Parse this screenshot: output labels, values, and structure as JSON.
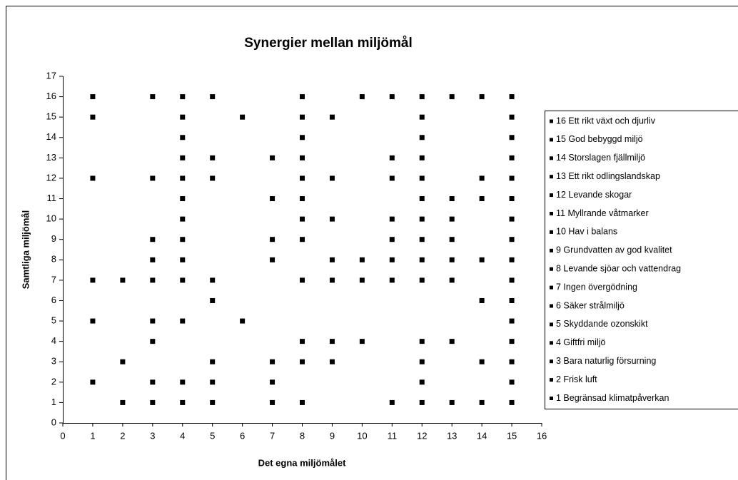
{
  "chart_data": {
    "type": "scatter",
    "title": "Synergier mellan miljömål",
    "xlabel": "Det egna miljömålet",
    "ylabel": "Samtliga miljömål",
    "xlim": [
      0,
      16
    ],
    "xticks": [
      0,
      1,
      2,
      3,
      4,
      5,
      6,
      7,
      8,
      9,
      10,
      11,
      12,
      13,
      14,
      15,
      16
    ],
    "ylim": [
      0,
      17
    ],
    "yticks": [
      0,
      1,
      2,
      3,
      4,
      5,
      6,
      7,
      8,
      9,
      10,
      11,
      12,
      13,
      14,
      15,
      16,
      17
    ],
    "grid": false,
    "legend": "right",
    "series": [
      {
        "name": "16 Ett rikt växt och djurliv",
        "color": "#000000",
        "x": [
          1,
          3,
          4,
          5,
          8,
          10,
          11,
          12,
          13,
          14,
          15
        ],
        "values": [
          16,
          16,
          16,
          16,
          16,
          16,
          16,
          16,
          16,
          16,
          16
        ]
      },
      {
        "name": "15 God bebyggd miljö",
        "color": "#000000",
        "x": [
          1,
          4,
          6,
          8,
          9,
          12,
          15
        ],
        "values": [
          15,
          15,
          15,
          15,
          15,
          15,
          15
        ]
      },
      {
        "name": "14 Storslagen fjällmiljö",
        "color": "#000000",
        "x": [
          4,
          8,
          12,
          15
        ],
        "values": [
          14,
          14,
          14,
          14
        ]
      },
      {
        "name": "13 Ett rikt odlingslandskap",
        "color": "#000000",
        "x": [
          4,
          5,
          7,
          8,
          11,
          12,
          15
        ],
        "values": [
          13,
          13,
          13,
          13,
          13,
          13,
          13
        ]
      },
      {
        "name": "12 Levande skogar",
        "color": "#000000",
        "x": [
          1,
          3,
          4,
          5,
          8,
          9,
          11,
          12,
          14,
          15
        ],
        "values": [
          12,
          12,
          12,
          12,
          12,
          12,
          12,
          12,
          12,
          12
        ]
      },
      {
        "name": "11 Myllrande våtmarker",
        "color": "#000000",
        "x": [
          4,
          7,
          8,
          12,
          13,
          14,
          15
        ],
        "values": [
          11,
          11,
          11,
          11,
          11,
          11,
          11
        ]
      },
      {
        "name": "10 Hav i balans",
        "color": "#000000",
        "x": [
          4,
          8,
          9,
          11,
          12,
          13,
          15
        ],
        "values": [
          10,
          10,
          10,
          10,
          10,
          10,
          10
        ]
      },
      {
        "name": "9 Grundvatten av god kvalitet",
        "color": "#000000",
        "x": [
          3,
          4,
          7,
          8,
          11,
          12,
          13,
          15
        ],
        "values": [
          9,
          9,
          9,
          9,
          9,
          9,
          9,
          9
        ]
      },
      {
        "name": "8 Levande sjöar och vattendrag",
        "color": "#000000",
        "x": [
          3,
          4,
          7,
          9,
          10,
          11,
          12,
          13,
          14,
          15
        ],
        "values": [
          8,
          8,
          8,
          8,
          8,
          8,
          8,
          8,
          8,
          8
        ]
      },
      {
        "name": "7 Ingen övergödning",
        "color": "#000000",
        "x": [
          1,
          2,
          3,
          4,
          5,
          8,
          9,
          10,
          11,
          12,
          13,
          15
        ],
        "values": [
          7,
          7,
          7,
          7,
          7,
          7,
          7,
          7,
          7,
          7,
          7,
          7
        ]
      },
      {
        "name": "6 Säker strålmiljö",
        "color": "#000000",
        "x": [
          5,
          14,
          15
        ],
        "values": [
          6,
          6,
          6
        ]
      },
      {
        "name": "5 Skyddande ozonskikt",
        "color": "#000000",
        "x": [
          1,
          3,
          4,
          6,
          15
        ],
        "values": [
          5,
          5,
          5,
          5,
          5
        ]
      },
      {
        "name": "4 Giftfri miljö",
        "color": "#000000",
        "x": [
          3,
          8,
          9,
          10,
          12,
          13,
          15
        ],
        "values": [
          4,
          4,
          4,
          4,
          4,
          4,
          4
        ]
      },
      {
        "name": "3 Bara naturlig försurning",
        "color": "#000000",
        "x": [
          2,
          5,
          7,
          8,
          9,
          12,
          14,
          15
        ],
        "values": [
          3,
          3,
          3,
          3,
          3,
          3,
          3,
          3
        ]
      },
      {
        "name": "2 Frisk luft",
        "color": "#000000",
        "x": [
          1,
          3,
          4,
          5,
          7,
          12,
          15
        ],
        "values": [
          2,
          2,
          2,
          2,
          2,
          2,
          2
        ]
      },
      {
        "name": "1 Begränsad klimatpåverkan",
        "color": "#000000",
        "x": [
          2,
          3,
          4,
          5,
          7,
          8,
          11,
          12,
          13,
          14,
          15
        ],
        "values": [
          1,
          1,
          1,
          1,
          1,
          1,
          1,
          1,
          1,
          1,
          1
        ]
      }
    ]
  }
}
